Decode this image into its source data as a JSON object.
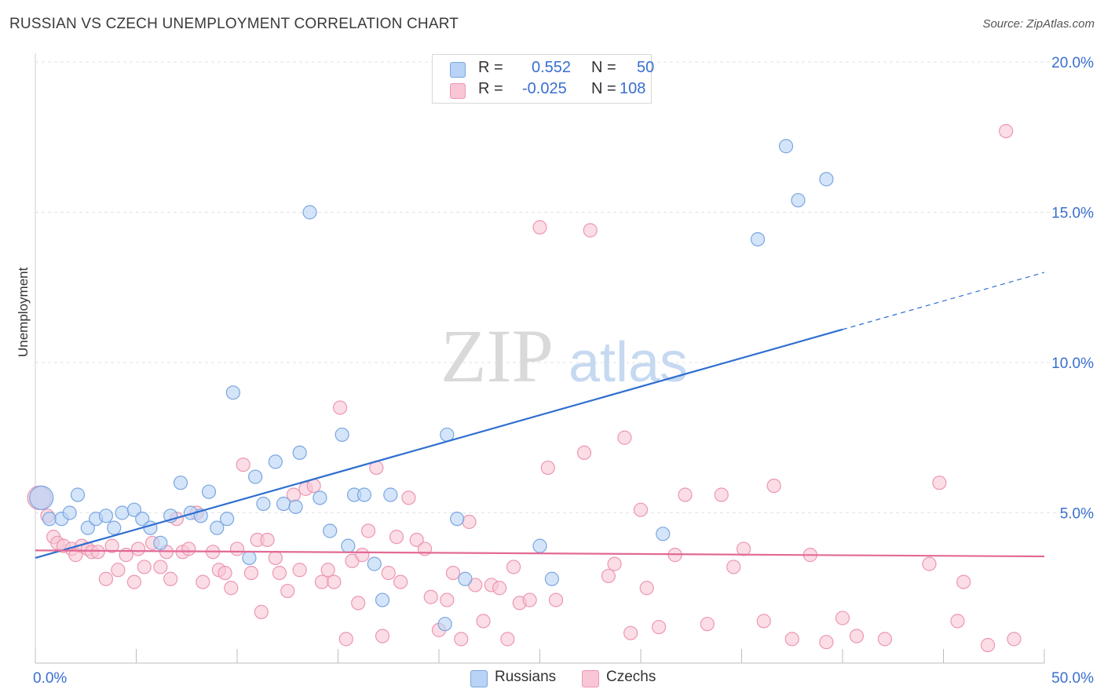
{
  "header": {
    "title": "RUSSIAN VS CZECH UNEMPLOYMENT CORRELATION CHART",
    "source": "Source: ZipAtlas.com"
  },
  "legend": {
    "r_label": "R =",
    "n_label": "N =",
    "russians": {
      "r": "0.552",
      "n": "50"
    },
    "czechs": {
      "r": "-0.025",
      "n": "108"
    }
  },
  "watermark": {
    "zip": "ZIP",
    "atlas": "atlas"
  },
  "colors": {
    "russians_fill": "#b8d3f5",
    "russians_stroke": "#7aa6e0",
    "russians_line": "#2f6fcf",
    "czechs_fill": "#f9c6d6",
    "czechs_stroke": "#ec97b2",
    "czechs_line": "#e26a96",
    "tick_label": "#3a6fcf"
  },
  "chart_data": {
    "type": "scatter",
    "xlabel": "",
    "ylabel": "Unemployment",
    "xlim": [
      0,
      50
    ],
    "ylim": [
      0,
      20
    ],
    "x_tick_labels": [
      {
        "value": 0,
        "label": "0.0%"
      },
      {
        "value": 50,
        "label": "50.0%"
      }
    ],
    "y_tick_labels": [
      {
        "value": 5,
        "label": "5.0%"
      },
      {
        "value": 10,
        "label": "10.0%"
      },
      {
        "value": 15,
        "label": "15.0%"
      },
      {
        "value": 20,
        "label": "20.0%"
      }
    ],
    "grid": true,
    "legend_placement": "top-center",
    "series": [
      {
        "name": "Russians",
        "trend": {
          "x": [
            0,
            40
          ],
          "y": [
            3.5,
            11.1
          ],
          "dashed_to": [
            50,
            13.0
          ]
        },
        "points": [
          [
            0.3,
            5.5
          ],
          [
            0.7,
            4.8
          ],
          [
            1.3,
            4.8
          ],
          [
            1.7,
            5.0
          ],
          [
            2.1,
            5.6
          ],
          [
            2.6,
            4.5
          ],
          [
            3.0,
            4.8
          ],
          [
            3.5,
            4.9
          ],
          [
            3.9,
            4.5
          ],
          [
            4.3,
            5.0
          ],
          [
            4.9,
            5.1
          ],
          [
            5.3,
            4.8
          ],
          [
            5.7,
            4.5
          ],
          [
            6.2,
            4.0
          ],
          [
            6.7,
            4.9
          ],
          [
            7.2,
            6.0
          ],
          [
            7.7,
            5.0
          ],
          [
            8.2,
            4.9
          ],
          [
            8.6,
            5.7
          ],
          [
            9.0,
            4.5
          ],
          [
            9.5,
            4.8
          ],
          [
            9.8,
            9.0
          ],
          [
            10.6,
            3.5
          ],
          [
            10.9,
            6.2
          ],
          [
            11.3,
            5.3
          ],
          [
            11.9,
            6.7
          ],
          [
            12.3,
            5.3
          ],
          [
            12.9,
            5.2
          ],
          [
            13.1,
            7.0
          ],
          [
            13.6,
            15.0
          ],
          [
            14.1,
            5.5
          ],
          [
            14.6,
            4.4
          ],
          [
            15.2,
            7.6
          ],
          [
            15.5,
            3.9
          ],
          [
            15.8,
            5.6
          ],
          [
            16.3,
            5.6
          ],
          [
            16.8,
            3.3
          ],
          [
            17.2,
            2.1
          ],
          [
            17.6,
            5.6
          ],
          [
            20.4,
            7.6
          ],
          [
            20.9,
            4.8
          ],
          [
            21.3,
            2.8
          ],
          [
            20.3,
            1.3
          ],
          [
            25.0,
            3.9
          ],
          [
            25.6,
            2.8
          ],
          [
            31.1,
            4.3
          ],
          [
            35.8,
            14.1
          ],
          [
            37.2,
            17.2
          ],
          [
            37.8,
            15.4
          ],
          [
            39.2,
            16.1
          ]
        ]
      },
      {
        "name": "Czechs",
        "trend": {
          "x": [
            0,
            50
          ],
          "y": [
            3.75,
            3.55
          ]
        },
        "points": [
          [
            0.2,
            5.5
          ],
          [
            0.6,
            4.9
          ],
          [
            0.9,
            4.2
          ],
          [
            1.1,
            4.0
          ],
          [
            1.4,
            3.9
          ],
          [
            1.8,
            3.8
          ],
          [
            2.0,
            3.6
          ],
          [
            2.3,
            3.9
          ],
          [
            2.6,
            3.8
          ],
          [
            2.8,
            3.7
          ],
          [
            3.1,
            3.7
          ],
          [
            3.5,
            2.8
          ],
          [
            3.8,
            3.9
          ],
          [
            4.1,
            3.1
          ],
          [
            4.5,
            3.6
          ],
          [
            4.9,
            2.7
          ],
          [
            5.1,
            3.8
          ],
          [
            5.4,
            3.2
          ],
          [
            5.8,
            4.0
          ],
          [
            6.2,
            3.2
          ],
          [
            6.5,
            3.7
          ],
          [
            6.7,
            2.8
          ],
          [
            7.0,
            4.8
          ],
          [
            7.3,
            3.7
          ],
          [
            7.6,
            3.8
          ],
          [
            8.0,
            5.0
          ],
          [
            8.3,
            2.7
          ],
          [
            8.8,
            3.7
          ],
          [
            9.1,
            3.1
          ],
          [
            9.4,
            3.0
          ],
          [
            9.7,
            2.5
          ],
          [
            10.0,
            3.8
          ],
          [
            10.3,
            6.6
          ],
          [
            10.7,
            3.0
          ],
          [
            11.0,
            4.1
          ],
          [
            11.2,
            1.7
          ],
          [
            11.5,
            4.1
          ],
          [
            11.9,
            3.5
          ],
          [
            12.1,
            3.0
          ],
          [
            12.5,
            2.4
          ],
          [
            12.8,
            5.6
          ],
          [
            13.1,
            3.1
          ],
          [
            13.4,
            5.8
          ],
          [
            13.8,
            5.9
          ],
          [
            14.2,
            2.7
          ],
          [
            14.5,
            3.1
          ],
          [
            14.8,
            2.7
          ],
          [
            15.1,
            8.5
          ],
          [
            15.4,
            0.8
          ],
          [
            15.7,
            3.4
          ],
          [
            16.0,
            2.0
          ],
          [
            16.2,
            3.6
          ],
          [
            16.5,
            4.4
          ],
          [
            16.9,
            6.5
          ],
          [
            17.2,
            0.9
          ],
          [
            17.5,
            3.0
          ],
          [
            17.9,
            4.2
          ],
          [
            18.1,
            2.7
          ],
          [
            18.5,
            5.5
          ],
          [
            18.9,
            4.1
          ],
          [
            19.3,
            3.8
          ],
          [
            19.6,
            2.2
          ],
          [
            20.0,
            1.1
          ],
          [
            20.4,
            2.1
          ],
          [
            20.7,
            3.0
          ],
          [
            21.1,
            0.8
          ],
          [
            21.5,
            4.7
          ],
          [
            21.8,
            2.6
          ],
          [
            22.2,
            1.4
          ],
          [
            22.6,
            2.6
          ],
          [
            23.0,
            2.5
          ],
          [
            23.4,
            0.8
          ],
          [
            23.7,
            3.2
          ],
          [
            24.0,
            2.0
          ],
          [
            24.5,
            2.1
          ],
          [
            25.0,
            14.5
          ],
          [
            25.4,
            6.5
          ],
          [
            25.8,
            2.1
          ],
          [
            27.2,
            7.0
          ],
          [
            27.5,
            14.4
          ],
          [
            28.4,
            2.9
          ],
          [
            28.7,
            3.3
          ],
          [
            29.2,
            7.5
          ],
          [
            29.5,
            1.0
          ],
          [
            30.0,
            5.1
          ],
          [
            30.3,
            2.5
          ],
          [
            30.9,
            1.2
          ],
          [
            31.7,
            3.6
          ],
          [
            32.2,
            5.6
          ],
          [
            33.3,
            1.3
          ],
          [
            34.0,
            5.6
          ],
          [
            34.6,
            3.2
          ],
          [
            35.1,
            3.8
          ],
          [
            36.1,
            1.4
          ],
          [
            36.6,
            5.9
          ],
          [
            37.5,
            0.8
          ],
          [
            38.4,
            3.6
          ],
          [
            39.2,
            0.7
          ],
          [
            40.0,
            1.5
          ],
          [
            40.7,
            0.9
          ],
          [
            42.1,
            0.8
          ],
          [
            44.3,
            3.3
          ],
          [
            44.8,
            6.0
          ],
          [
            45.7,
            1.4
          ],
          [
            46.0,
            2.7
          ],
          [
            47.2,
            0.6
          ],
          [
            48.1,
            17.7
          ],
          [
            48.5,
            0.8
          ]
        ]
      }
    ]
  }
}
